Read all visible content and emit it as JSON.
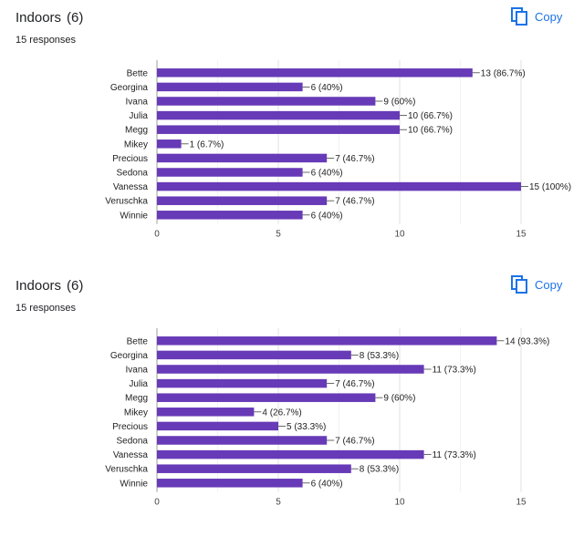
{
  "copy_label": "Copy",
  "accent_color": "#1a73e8",
  "bar_color": "#673ab7",
  "charts": [
    {
      "title": "Indoors",
      "count": "(6)",
      "responses": "15 responses"
    },
    {
      "title": "Indoors",
      "count": "(6)",
      "responses": "15 responses"
    }
  ],
  "chart_data": [
    {
      "type": "bar",
      "orientation": "horizontal",
      "categories": [
        "Bette",
        "Georgina",
        "Ivana",
        "Julia",
        "Megg",
        "Mikey",
        "Precious",
        "Sedona",
        "Vanessa",
        "Veruschka",
        "Winnie"
      ],
      "values": [
        13,
        6,
        9,
        10,
        10,
        1,
        7,
        6,
        15,
        7,
        6
      ],
      "data_labels": [
        "13 (86.7%)",
        "6 (40%)",
        "9 (60%)",
        "10 (66.7%)",
        "10 (66.7%)",
        "1 (6.7%)",
        "7 (46.7%)",
        "6 (40%)",
        "15 (100%)",
        "7 (46.7%)",
        "6 (40%)"
      ],
      "xlim": [
        0,
        15
      ],
      "xticks": [
        0,
        5,
        10,
        15
      ],
      "grid": true
    },
    {
      "type": "bar",
      "orientation": "horizontal",
      "categories": [
        "Bette",
        "Georgina",
        "Ivana",
        "Julia",
        "Megg",
        "Mikey",
        "Precious",
        "Sedona",
        "Vanessa",
        "Veruschka",
        "Winnie"
      ],
      "values": [
        14,
        8,
        11,
        7,
        9,
        4,
        5,
        7,
        11,
        8,
        6
      ],
      "data_labels": [
        "14 (93.3%)",
        "8 (53.3%)",
        "11 (73.3%)",
        "7 (46.7%)",
        "9 (60%)",
        "4 (26.7%)",
        "5 (33.3%)",
        "7 (46.7%)",
        "11 (73.3%)",
        "8 (53.3%)",
        "6 (40%)"
      ],
      "xlim": [
        0,
        15
      ],
      "xticks": [
        0,
        5,
        10,
        15
      ],
      "grid": true
    }
  ]
}
